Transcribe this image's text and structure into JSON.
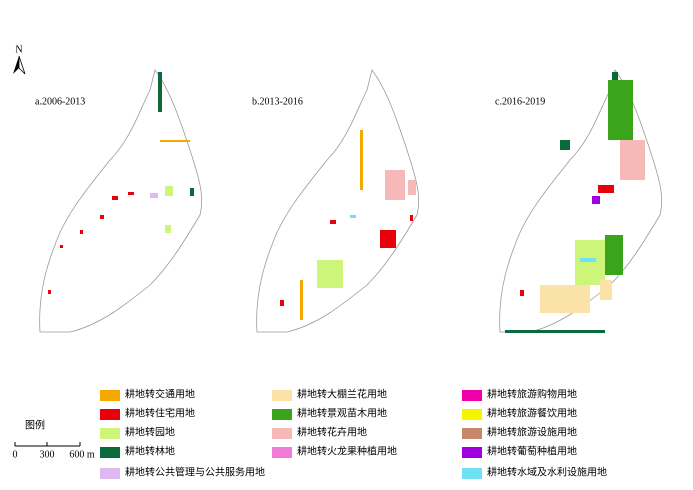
{
  "north": "N",
  "panels": [
    {
      "label": "a.2006-2013"
    },
    {
      "label": "b.2013-2016"
    },
    {
      "label": "c.2016-2019"
    }
  ],
  "legend": {
    "title": "图例",
    "items": [
      {
        "label": "耕地转交通用地",
        "color": "#f5a800"
      },
      {
        "label": "耕地转住宅用地",
        "color": "#e8000b"
      },
      {
        "label": "耕地转园地",
        "color": "#ccf57a"
      },
      {
        "label": "耕地转林地",
        "color": "#0a6b3a"
      },
      {
        "label": "耕地转公共管理与公共服务用地",
        "color": "#e0b8f0"
      },
      {
        "label": "耕地转大棚兰花用地",
        "color": "#fbe3a8"
      },
      {
        "label": "耕地转景观苗木用地",
        "color": "#3aa51a"
      },
      {
        "label": "耕地转花卉用地",
        "color": "#f7b8b8"
      },
      {
        "label": "耕地转火龙果种植用地",
        "color": "#f07ad8"
      },
      {
        "label": "耕地转旅游购物用地",
        "color": "#f000a8"
      },
      {
        "label": "耕地转旅游餐饮用地",
        "color": "#f5f500"
      },
      {
        "label": "耕地转旅游设施用地",
        "color": "#c8866a"
      },
      {
        "label": "耕地转葡萄种植用地",
        "color": "#a000e0"
      },
      {
        "label": "耕地转水域及水利设施用地",
        "color": "#70e0f5"
      }
    ]
  },
  "scale_bar": {
    "labels": [
      "0",
      "300",
      "600 m"
    ]
  }
}
